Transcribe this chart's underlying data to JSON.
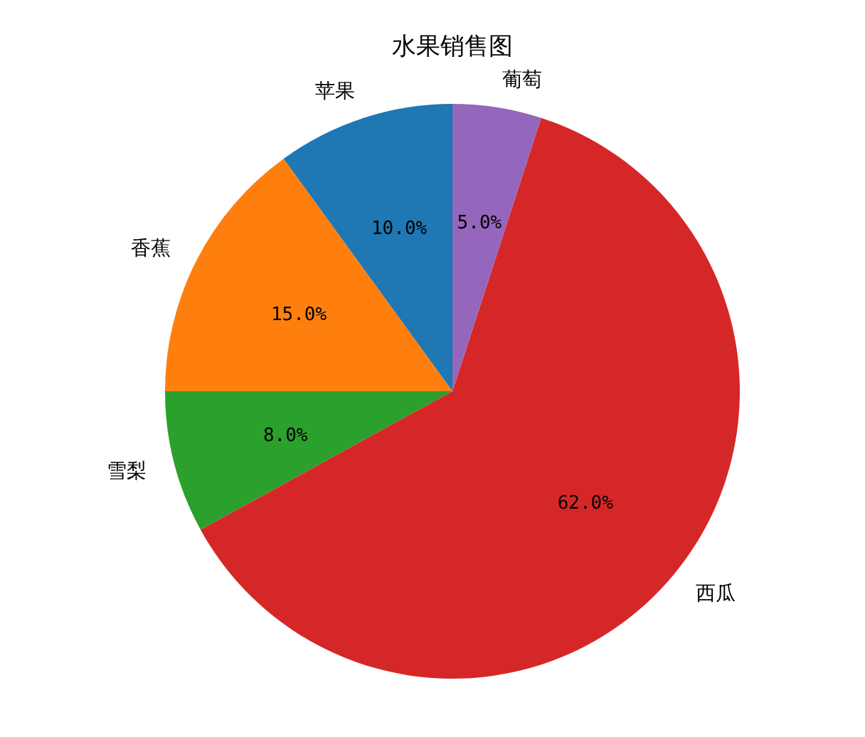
{
  "chart_data": {
    "type": "pie",
    "title": "水果销售图",
    "categories": [
      "苹果",
      "香蕉",
      "雪梨",
      "西瓜",
      "葡萄"
    ],
    "values": [
      10,
      15,
      8,
      62,
      5
    ],
    "value_labels": [
      "10.0%",
      "15.0%",
      "8.0%",
      "62.0%",
      "5.0%"
    ],
    "colors": [
      "#1f77b4",
      "#ff7f0e",
      "#2ca02c",
      "#d62728",
      "#9467bd"
    ]
  }
}
